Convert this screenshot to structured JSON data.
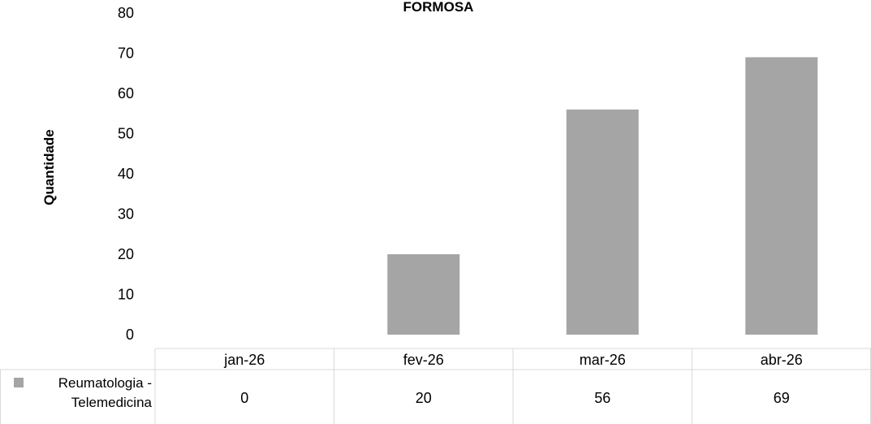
{
  "chart_data": {
    "type": "bar",
    "title": "FORMOSA",
    "ylabel": "Quantidade",
    "xlabel": "",
    "categories": [
      "jan-26",
      "fev-26",
      "mar-26",
      "abr-26"
    ],
    "series": [
      {
        "name_lines": [
          "Reumatologia -",
          "Telemedicina"
        ],
        "values": [
          0,
          20,
          56,
          69
        ],
        "color": "#a5a5a5"
      }
    ],
    "ylim": [
      0,
      80
    ],
    "yticks": [
      0,
      10,
      20,
      30,
      40,
      50,
      60,
      70,
      80
    ],
    "grid": false,
    "legend": "data-table"
  }
}
